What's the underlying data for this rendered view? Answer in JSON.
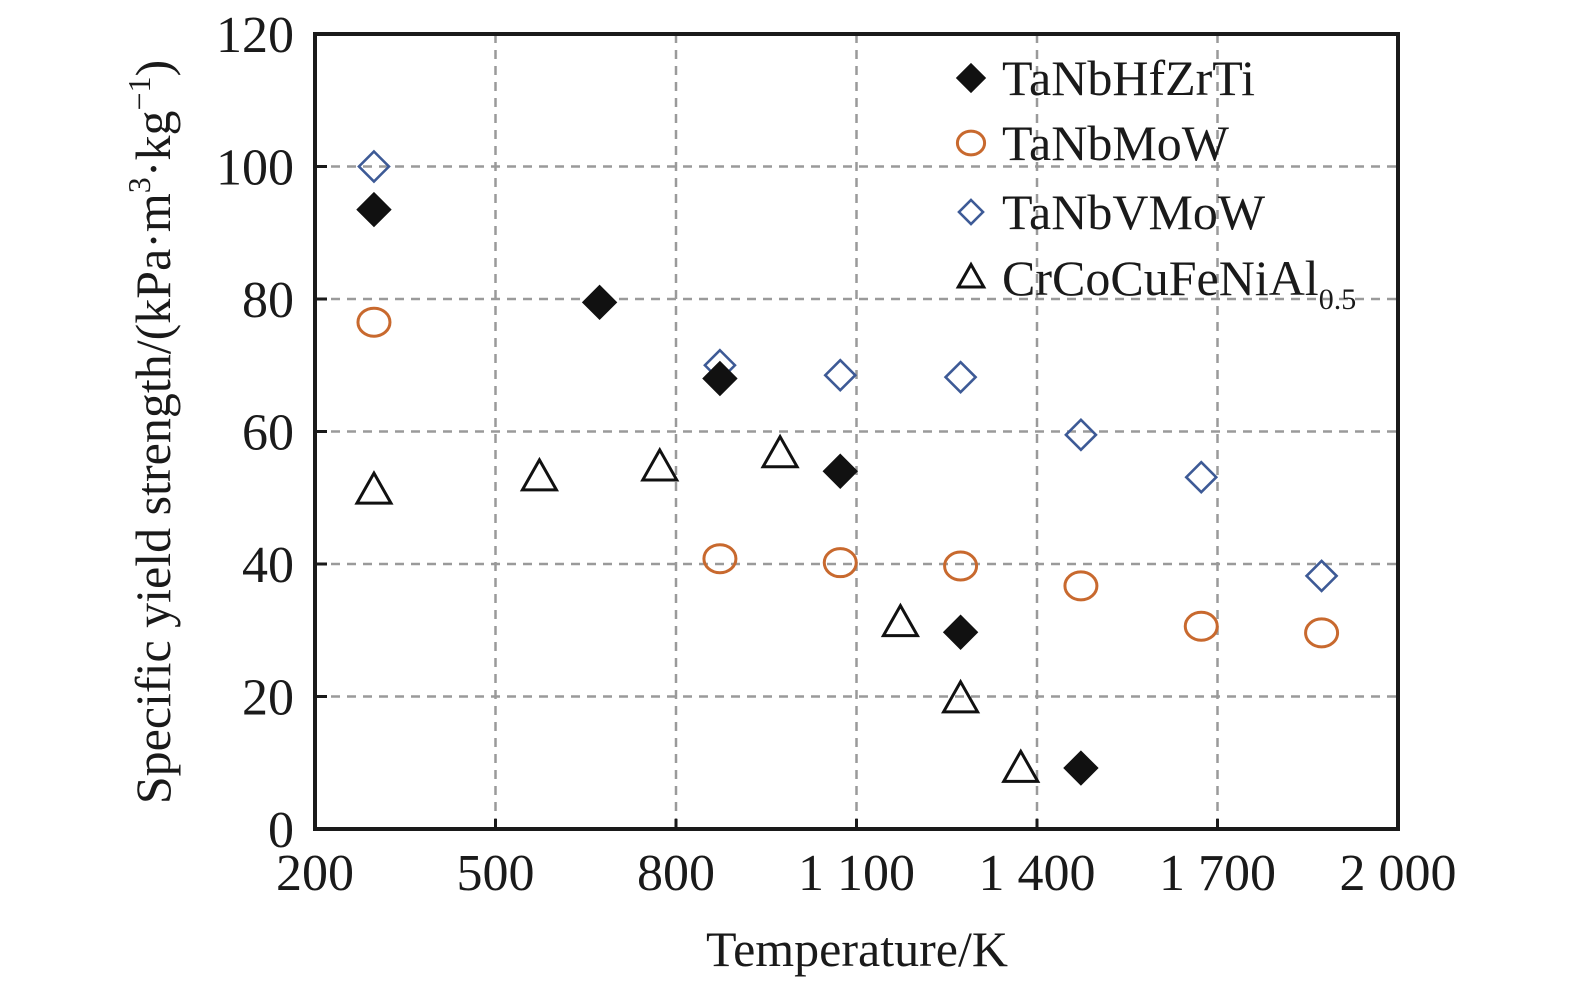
{
  "chart_data": {
    "type": "scatter",
    "title": "",
    "xlabel": "Temperature/K",
    "ylabel": {
      "main": "Specific yield strength/(kPa·m",
      "sup1": "3",
      "mid": "·kg",
      "sup2": "−1",
      "end": ")"
    },
    "xlim": [
      200,
      2000
    ],
    "ylim": [
      0,
      120
    ],
    "xticks": [
      200,
      500,
      800,
      1100,
      1400,
      1700,
      2000
    ],
    "xtick_labels": [
      "200",
      "500",
      "800",
      "1 100",
      "1 400",
      "1 700",
      "2 000"
    ],
    "yticks": [
      0,
      20,
      40,
      60,
      80,
      100,
      120
    ],
    "ytick_labels": [
      "0",
      "20",
      "40",
      "60",
      "80",
      "100",
      "120"
    ],
    "grid": true,
    "legend_position": "top-right",
    "series": [
      {
        "name": "TaNbHfZrTi",
        "name_sub": "",
        "marker": "filled-diamond",
        "color": "#111111",
        "x": [
          298,
          673,
          873,
          1073,
          1273,
          1473
        ],
        "y": [
          93.5,
          79.5,
          68,
          54,
          29.7,
          9.2
        ]
      },
      {
        "name": "TaNbMoW",
        "name_sub": "",
        "marker": "open-circle",
        "color": "#c8692e",
        "x": [
          298,
          873,
          1073,
          1273,
          1473,
          1673,
          1873
        ],
        "y": [
          76.5,
          40.8,
          40.2,
          39.7,
          36.7,
          30.6,
          29.6
        ]
      },
      {
        "name": "TaNbVMoW",
        "name_sub": "",
        "marker": "open-diamond",
        "color": "#3d5a96",
        "x": [
          298,
          873,
          1073,
          1273,
          1473,
          1673,
          1873
        ],
        "y": [
          100,
          70,
          68.5,
          68.2,
          59.5,
          53.1,
          38.2
        ]
      },
      {
        "name": "CrCoCuFeNiAl",
        "name_sub": "0.5",
        "marker": "open-triangle",
        "color": "#111111",
        "x": [
          298,
          573,
          773,
          973,
          1173,
          1273,
          1373
        ],
        "y": [
          51,
          53,
          54.5,
          56.5,
          31,
          19.5,
          9
        ]
      }
    ]
  }
}
